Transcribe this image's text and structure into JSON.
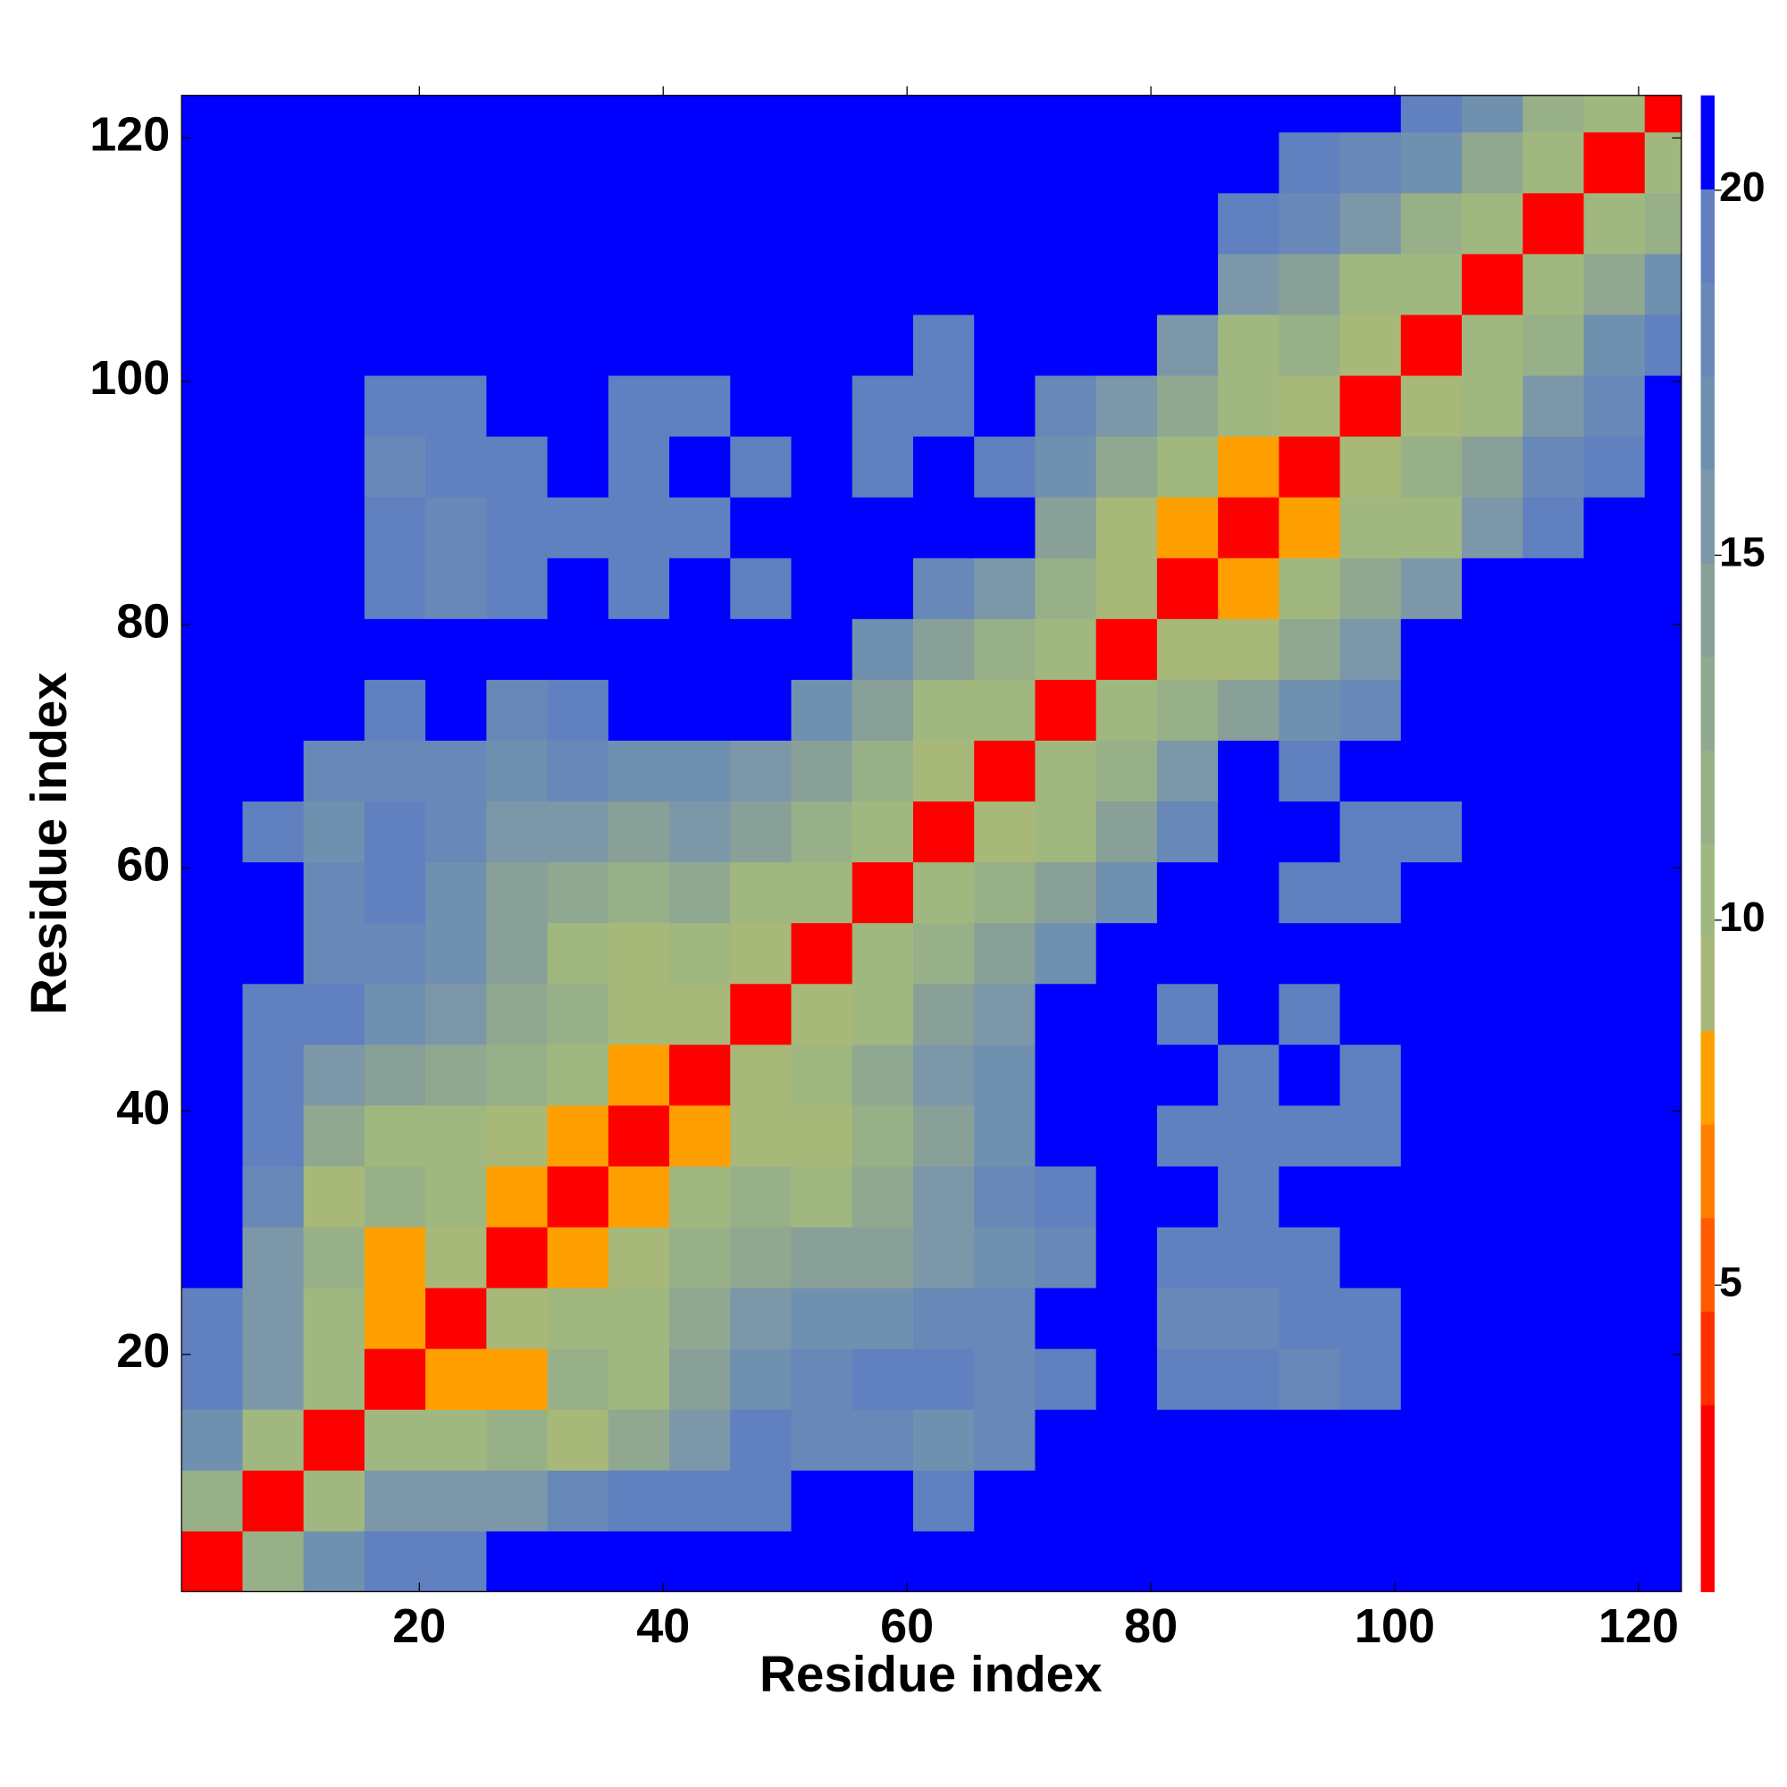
{
  "chart_data": {
    "type": "heatmap",
    "xlabel": "Residue index",
    "ylabel": "Residue index",
    "xbins": [
      0.5,
      5.5,
      10.5,
      15.5,
      20.5,
      25.5,
      30.5,
      35.5,
      40.5,
      45.5,
      50.5,
      55.5,
      60.5,
      65.5,
      70.5,
      75.5,
      80.5,
      85.5,
      90.5,
      95.5,
      100.5,
      105.5,
      110.5,
      115.5,
      120.5,
      123.5
    ],
    "ybins": [
      0.5,
      5.5,
      10.5,
      15.5,
      20.5,
      25.5,
      30.5,
      35.5,
      40.5,
      45.5,
      50.5,
      55.5,
      60.5,
      65.5,
      70.5,
      75.5,
      80.5,
      85.5,
      90.5,
      95.5,
      100.5,
      105.5,
      110.5,
      115.5,
      120.5,
      123.5
    ],
    "xlim": [
      0.5,
      123.5
    ],
    "ylim": [
      0.5,
      123.5
    ],
    "xticks": [
      20,
      40,
      60,
      80,
      100,
      120
    ],
    "yticks": [
      20,
      40,
      60,
      80,
      100,
      120
    ],
    "values": [
      [
        3,
        12,
        17,
        19,
        19,
        21,
        21,
        21,
        21,
        21,
        21,
        21,
        21,
        21,
        21,
        21,
        21,
        21,
        21,
        21,
        21,
        21,
        21,
        21,
        21
      ],
      [
        12,
        3,
        11,
        15,
        16,
        16,
        18,
        19,
        19,
        20,
        21,
        21,
        19,
        21,
        21,
        21,
        21,
        21,
        21,
        21,
        21,
        21,
        21,
        21,
        21
      ],
      [
        17,
        11,
        3,
        10,
        10,
        12,
        9,
        13,
        16,
        19,
        18,
        18,
        17,
        18,
        21,
        21,
        21,
        21,
        21,
        21,
        21,
        21,
        21,
        21,
        21
      ],
      [
        19,
        15,
        10,
        3,
        8,
        8,
        12,
        11,
        14,
        17,
        18,
        19,
        19,
        18,
        19,
        21,
        19,
        19,
        18,
        19,
        21,
        21,
        21,
        21,
        21
      ],
      [
        19,
        16,
        10,
        8,
        3,
        9,
        11,
        11,
        13,
        15,
        17,
        17,
        18,
        18,
        21,
        21,
        18,
        18,
        19,
        19,
        21,
        21,
        21,
        21,
        21
      ],
      [
        21,
        16,
        12,
        8,
        9,
        3,
        8,
        9,
        12,
        13,
        14,
        14,
        15,
        17,
        18,
        21,
        19,
        19,
        20,
        21,
        21,
        21,
        21,
        21,
        21
      ],
      [
        21,
        18,
        9,
        12,
        11,
        8,
        3,
        8,
        10,
        12,
        10,
        13,
        15,
        18,
        19,
        21,
        21,
        20,
        21,
        21,
        21,
        21,
        21,
        21,
        21
      ],
      [
        21,
        19,
        13,
        11,
        11,
        9,
        8,
        3,
        8,
        9,
        9,
        12,
        14,
        17,
        21,
        21,
        19,
        19,
        19,
        19,
        21,
        21,
        21,
        21,
        21
      ],
      [
        21,
        19,
        16,
        14,
        13,
        12,
        10,
        8,
        3,
        9,
        11,
        13,
        15,
        17,
        21,
        21,
        21,
        19,
        21,
        20,
        21,
        21,
        21,
        21,
        21
      ],
      [
        21,
        20,
        19,
        17,
        15,
        13,
        12,
        9,
        9,
        3,
        9,
        11,
        14,
        16,
        21,
        21,
        20,
        21,
        20,
        21,
        21,
        21,
        21,
        21,
        21
      ],
      [
        21,
        21,
        18,
        18,
        17,
        14,
        10,
        9,
        11,
        9,
        3,
        10,
        12,
        14,
        17,
        21,
        21,
        21,
        21,
        21,
        21,
        21,
        21,
        21,
        21
      ],
      [
        21,
        21,
        18,
        19,
        17,
        14,
        13,
        12,
        13,
        11,
        10,
        3,
        10,
        12,
        14,
        17,
        21,
        21,
        20,
        20,
        21,
        21,
        21,
        21,
        21
      ],
      [
        21,
        19,
        17,
        19,
        18,
        15,
        15,
        14,
        15,
        14,
        12,
        10,
        3,
        9,
        11,
        14,
        18,
        21,
        21,
        19,
        19,
        21,
        21,
        21,
        21
      ],
      [
        21,
        21,
        18,
        18,
        18,
        17,
        18,
        17,
        17,
        16,
        14,
        12,
        9,
        3,
        10,
        12,
        15,
        21,
        19,
        21,
        21,
        21,
        21,
        21,
        21
      ],
      [
        21,
        21,
        21,
        19,
        21,
        18,
        19,
        21,
        21,
        21,
        17,
        14,
        11,
        10,
        3,
        10,
        12,
        14,
        17,
        18,
        21,
        21,
        21,
        21,
        21
      ],
      [
        21,
        21,
        21,
        21,
        21,
        21,
        21,
        21,
        21,
        21,
        21,
        17,
        14,
        12,
        10,
        3,
        9,
        9,
        13,
        16,
        21,
        21,
        21,
        21,
        21
      ],
      [
        21,
        21,
        21,
        19,
        18,
        19,
        21,
        19,
        21,
        20,
        21,
        21,
        18,
        15,
        12,
        9,
        3,
        8,
        10,
        13,
        15,
        21,
        21,
        21,
        21
      ],
      [
        21,
        21,
        21,
        19,
        18,
        19,
        20,
        19,
        19,
        21,
        21,
        21,
        21,
        21,
        14,
        9,
        8,
        3,
        8,
        10,
        10,
        15,
        19,
        21,
        21
      ],
      [
        21,
        21,
        21,
        18,
        19,
        20,
        21,
        19,
        21,
        20,
        21,
        20,
        21,
        19,
        17,
        13,
        10,
        8,
        3,
        9,
        12,
        14,
        18,
        19,
        21
      ],
      [
        21,
        21,
        21,
        19,
        19,
        21,
        21,
        19,
        20,
        21,
        21,
        20,
        19,
        21,
        18,
        16,
        13,
        10,
        9,
        3,
        9,
        11,
        15,
        18,
        21
      ],
      [
        21,
        21,
        21,
        21,
        21,
        21,
        21,
        21,
        21,
        21,
        21,
        21,
        19,
        21,
        21,
        21,
        15,
        10,
        12,
        9,
        3,
        10,
        12,
        17,
        19
      ],
      [
        21,
        21,
        21,
        21,
        21,
        21,
        21,
        21,
        21,
        21,
        21,
        21,
        21,
        21,
        21,
        21,
        21,
        15,
        14,
        11,
        10,
        3,
        10,
        13,
        17
      ],
      [
        21,
        21,
        21,
        21,
        21,
        21,
        21,
        21,
        21,
        21,
        21,
        21,
        21,
        21,
        21,
        21,
        21,
        19,
        18,
        15,
        12,
        10,
        3,
        10,
        12
      ],
      [
        21,
        21,
        21,
        21,
        21,
        21,
        21,
        21,
        21,
        21,
        21,
        21,
        21,
        21,
        21,
        21,
        21,
        21,
        19,
        18,
        17,
        13,
        10,
        3,
        10
      ],
      [
        21,
        21,
        21,
        21,
        21,
        21,
        21,
        21,
        21,
        21,
        21,
        21,
        21,
        21,
        21,
        21,
        21,
        21,
        21,
        21,
        19,
        17,
        12,
        10,
        3
      ]
    ],
    "colorbar": {
      "zlim": [
        0.8,
        21.3
      ],
      "ticks": [
        5,
        10,
        15,
        20
      ],
      "colors": [
        "#ff0000",
        "#ff0000",
        "#ff3000",
        "#ff5a00",
        "#ff7f00",
        "#ffa000",
        "#a8b878",
        "#a0b880",
        "#98b088",
        "#90a890",
        "#88a098",
        "#7c98a8",
        "#7090b0",
        "#6888b8",
        "#6080c0",
        "#0000ff"
      ]
    }
  }
}
